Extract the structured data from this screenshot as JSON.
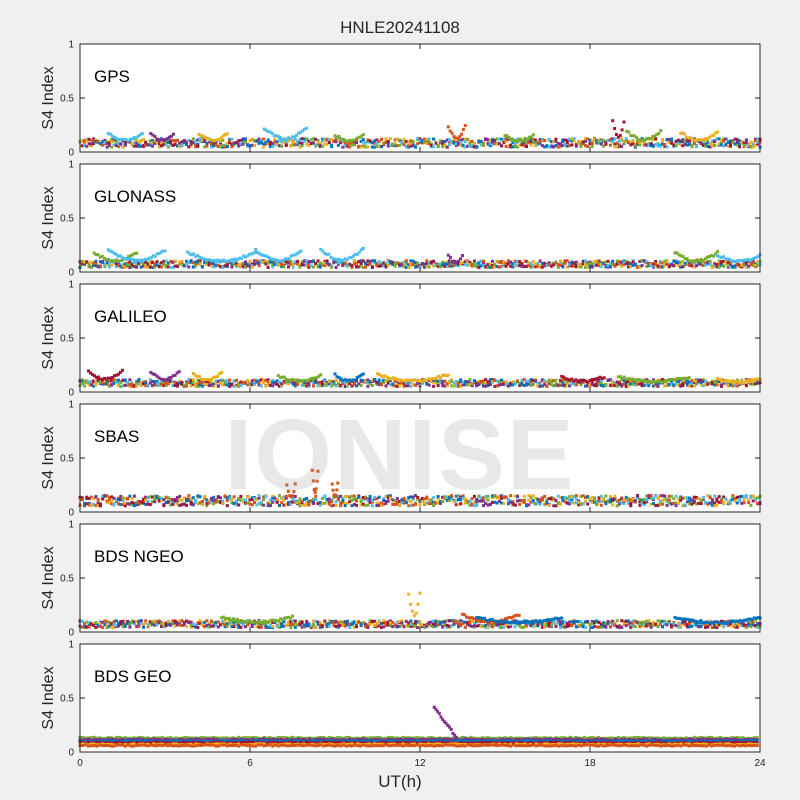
{
  "title": "HNLE20241108",
  "watermark": "IONISE",
  "colors": [
    "#0072bd",
    "#d95319",
    "#edb120",
    "#7e2f8e",
    "#77ac30",
    "#4dbeee",
    "#a2142f"
  ],
  "chart_data": [
    {
      "type": "scatter",
      "panel_label": "GPS",
      "ylabel": "S4 Index",
      "xlim": [
        0,
        24
      ],
      "ylim": [
        0,
        1
      ],
      "yticks": [
        0,
        0.5,
        1
      ],
      "xticks": [
        0,
        6,
        12,
        18,
        24
      ],
      "baseline": 0.08,
      "noise": 0.05,
      "arcs": [
        {
          "x0": 1.0,
          "x1": 2.2,
          "y": 0.17,
          "c": 5
        },
        {
          "x0": 2.5,
          "x1": 3.3,
          "y": 0.17,
          "c": 3
        },
        {
          "x0": 4.2,
          "x1": 5.2,
          "y": 0.17,
          "c": 2
        },
        {
          "x0": 6.5,
          "x1": 8.0,
          "y": 0.22,
          "c": 5
        },
        {
          "x0": 9.0,
          "x1": 10.0,
          "y": 0.16,
          "c": 4
        },
        {
          "x0": 13.0,
          "x1": 13.6,
          "y": 0.24,
          "c": 1
        },
        {
          "x0": 15.0,
          "x1": 16.0,
          "y": 0.16,
          "c": 4
        },
        {
          "x0": 18.8,
          "x1": 19.2,
          "y": 0.28,
          "c": 6
        },
        {
          "x0": 19.3,
          "x1": 20.5,
          "y": 0.19,
          "c": 4
        },
        {
          "x0": 21.2,
          "x1": 22.5,
          "y": 0.18,
          "c": 2
        }
      ]
    },
    {
      "type": "scatter",
      "panel_label": "GLONASS",
      "ylabel": "S4 Index",
      "xlim": [
        0,
        24
      ],
      "ylim": [
        0,
        1
      ],
      "yticks": [
        0,
        0.5,
        1
      ],
      "xticks": [
        0,
        6,
        12,
        18,
        24
      ],
      "baseline": 0.07,
      "noise": 0.04,
      "arcs": [
        {
          "x0": 0.5,
          "x1": 2.0,
          "y": 0.18,
          "c": 4
        },
        {
          "x0": 1.0,
          "x1": 3.0,
          "y": 0.2,
          "c": 5
        },
        {
          "x0": 3.8,
          "x1": 6.2,
          "y": 0.18,
          "c": 5
        },
        {
          "x0": 6.2,
          "x1": 7.8,
          "y": 0.2,
          "c": 5
        },
        {
          "x0": 8.5,
          "x1": 10.0,
          "y": 0.21,
          "c": 5
        },
        {
          "x0": 13.0,
          "x1": 13.5,
          "y": 0.15,
          "c": 3
        },
        {
          "x0": 21.0,
          "x1": 22.5,
          "y": 0.18,
          "c": 4
        },
        {
          "x0": 22.5,
          "x1": 24.0,
          "y": 0.16,
          "c": 5
        }
      ]
    },
    {
      "type": "scatter",
      "panel_label": "GALILEO",
      "ylabel": "S4 Index",
      "xlim": [
        0,
        24
      ],
      "ylim": [
        0,
        1
      ],
      "yticks": [
        0,
        0.5,
        1
      ],
      "xticks": [
        0,
        6,
        12,
        18,
        24
      ],
      "baseline": 0.08,
      "noise": 0.04,
      "arcs": [
        {
          "x0": 0.3,
          "x1": 1.5,
          "y": 0.2,
          "c": 6
        },
        {
          "x0": 2.5,
          "x1": 3.5,
          "y": 0.19,
          "c": 3
        },
        {
          "x0": 4.0,
          "x1": 5.0,
          "y": 0.18,
          "c": 2
        },
        {
          "x0": 7.0,
          "x1": 8.5,
          "y": 0.15,
          "c": 4
        },
        {
          "x0": 9.0,
          "x1": 10.0,
          "y": 0.16,
          "c": 0
        },
        {
          "x0": 10.5,
          "x1": 13.0,
          "y": 0.16,
          "c": 2
        },
        {
          "x0": 17.0,
          "x1": 18.5,
          "y": 0.14,
          "c": 6
        },
        {
          "x0": 19.0,
          "x1": 21.5,
          "y": 0.14,
          "c": 4
        },
        {
          "x0": 22.5,
          "x1": 24.0,
          "y": 0.12,
          "c": 2
        }
      ]
    },
    {
      "type": "scatter",
      "panel_label": "SBAS",
      "ylabel": "S4 Index",
      "xlim": [
        0,
        24
      ],
      "ylim": [
        0,
        1
      ],
      "yticks": [
        0,
        0.5,
        1
      ],
      "xticks": [
        0,
        6,
        12,
        18,
        24
      ],
      "baseline": 0.1,
      "noise": 0.06,
      "arcs": [
        {
          "x0": 7.3,
          "x1": 7.6,
          "y": 0.25,
          "c": 1
        },
        {
          "x0": 8.2,
          "x1": 8.4,
          "y": 0.38,
          "c": 1
        },
        {
          "x0": 8.9,
          "x1": 9.1,
          "y": 0.26,
          "c": 1
        }
      ]
    },
    {
      "type": "scatter",
      "panel_label": "BDS NGEO",
      "ylabel": "S4 Index",
      "xlim": [
        0,
        24
      ],
      "ylim": [
        0,
        1
      ],
      "yticks": [
        0,
        0.5,
        1
      ],
      "xticks": [
        0,
        6,
        12,
        18,
        24
      ],
      "baseline": 0.07,
      "noise": 0.04,
      "arcs": [
        {
          "x0": 5.0,
          "x1": 7.5,
          "y": 0.14,
          "c": 4
        },
        {
          "x0": 11.6,
          "x1": 12.0,
          "y": 0.36,
          "c": 2
        },
        {
          "x0": 13.5,
          "x1": 15.5,
          "y": 0.16,
          "c": 1
        },
        {
          "x0": 14.0,
          "x1": 17.0,
          "y": 0.13,
          "c": 0
        },
        {
          "x0": 21.0,
          "x1": 24.0,
          "y": 0.13,
          "c": 0
        }
      ]
    },
    {
      "type": "scatter",
      "panel_label": "BDS GEO",
      "ylabel": "S4 Index",
      "xlim": [
        0,
        24
      ],
      "ylim": [
        0,
        1
      ],
      "yticks": [
        0,
        0.5,
        1
      ],
      "xticks": [
        0,
        6,
        12,
        18,
        24
      ],
      "xlabel": "UT(h)",
      "levels": [
        {
          "y": 0.13,
          "c": 4
        },
        {
          "y": 0.115,
          "c": 3
        },
        {
          "y": 0.1,
          "c": 0
        },
        {
          "y": 0.085,
          "c": 6
        },
        {
          "y": 0.07,
          "c": 2
        },
        {
          "y": 0.06,
          "c": 1
        }
      ],
      "spike": {
        "x": 12.5,
        "y": 0.42,
        "c": 3
      }
    }
  ]
}
